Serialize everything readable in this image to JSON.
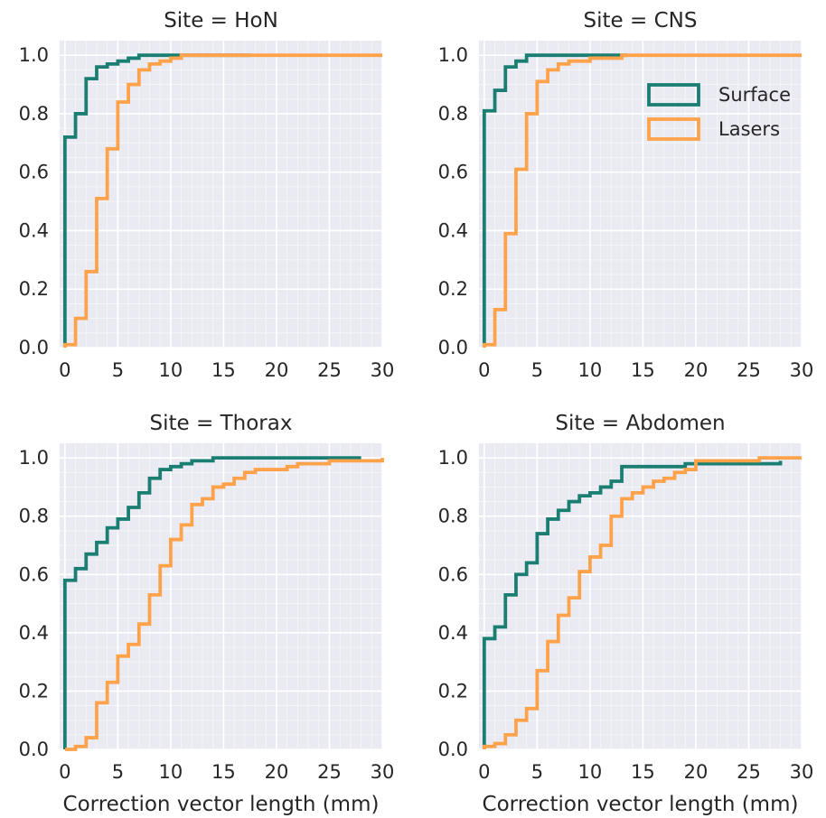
{
  "figure": {
    "colors": {
      "panel_bg": "#eaeaf2",
      "grid_major": "#ffffff",
      "surface": "#1a7f72",
      "lasers": "#ffa24a",
      "text": "#262626"
    },
    "legend": {
      "placement": "upper right of panel 2",
      "entries": [
        "Surface",
        "Lasers"
      ]
    }
  },
  "chart_data": [
    {
      "type": "line",
      "step": "post",
      "title": "Site = HoN",
      "xlabel": "",
      "xlim": [
        -0.5,
        30
      ],
      "ylim": [
        0.0,
        1.05
      ],
      "xticks": [
        "0",
        "5",
        "10",
        "15",
        "20",
        "25",
        "30"
      ],
      "yticks": [
        "0.0",
        "0.2",
        "0.4",
        "0.6",
        "0.8",
        "1.0"
      ],
      "grid": true,
      "series": [
        {
          "name": "Surface",
          "x": [
            0,
            1,
            2,
            3,
            4,
            5,
            6,
            7,
            8,
            9,
            17.5
          ],
          "y": [
            0.72,
            0.8,
            0.92,
            0.96,
            0.97,
            0.98,
            0.99,
            1.0,
            1.0,
            1.0,
            1.0
          ]
        },
        {
          "name": "Lasers",
          "x": [
            0,
            1,
            2,
            3,
            4,
            5,
            6,
            7,
            8,
            9,
            10,
            11,
            12,
            30
          ],
          "y": [
            0.01,
            0.1,
            0.26,
            0.51,
            0.68,
            0.84,
            0.9,
            0.95,
            0.97,
            0.98,
            0.99,
            1.0,
            1.0,
            1.0
          ]
        }
      ]
    },
    {
      "type": "line",
      "step": "post",
      "title": "Site = CNS",
      "xlabel": "",
      "xlim": [
        -0.5,
        30
      ],
      "ylim": [
        0.0,
        1.05
      ],
      "xticks": [
        "0",
        "5",
        "10",
        "15",
        "20",
        "25",
        "30"
      ],
      "yticks": [
        "0.0",
        "0.2",
        "0.4",
        "0.6",
        "0.8",
        "1.0"
      ],
      "grid": true,
      "series": [
        {
          "name": "Surface",
          "x": [
            0,
            1,
            2,
            3,
            4,
            13.5
          ],
          "y": [
            0.81,
            0.88,
            0.96,
            0.98,
            1.0,
            1.0
          ]
        },
        {
          "name": "Lasers",
          "x": [
            0,
            1,
            2,
            3,
            4,
            5,
            6,
            7,
            8,
            9,
            10,
            11,
            12,
            13,
            30
          ],
          "y": [
            0.01,
            0.13,
            0.39,
            0.61,
            0.8,
            0.91,
            0.95,
            0.97,
            0.98,
            0.98,
            0.99,
            0.99,
            0.99,
            1.0,
            1.0
          ]
        }
      ]
    },
    {
      "type": "line",
      "step": "post",
      "title": "Site = Thorax",
      "xlabel": "Correction vector length (mm)",
      "xlim": [
        -0.5,
        30
      ],
      "ylim": [
        0.0,
        1.05
      ],
      "xticks": [
        "0",
        "5",
        "10",
        "15",
        "20",
        "25",
        "30"
      ],
      "yticks": [
        "0.0",
        "0.2",
        "0.4",
        "0.6",
        "0.8",
        "1.0"
      ],
      "grid": true,
      "series": [
        {
          "name": "Surface",
          "x": [
            0,
            1,
            2,
            3,
            4,
            5,
            6,
            7,
            8,
            9,
            10,
            11,
            12,
            13,
            14,
            28
          ],
          "y": [
            0.58,
            0.62,
            0.67,
            0.71,
            0.76,
            0.79,
            0.83,
            0.88,
            0.93,
            0.96,
            0.97,
            0.98,
            0.99,
            0.99,
            1.0,
            1.0
          ]
        },
        {
          "name": "Lasers",
          "x": [
            0,
            1,
            2,
            3,
            4,
            5,
            6,
            7,
            8,
            9,
            10,
            11,
            12,
            13,
            14,
            15,
            16,
            17,
            18,
            19,
            20,
            21,
            22,
            23,
            24,
            25,
            26,
            27,
            28,
            30
          ],
          "y": [
            0.0,
            0.01,
            0.04,
            0.16,
            0.23,
            0.32,
            0.36,
            0.43,
            0.53,
            0.63,
            0.72,
            0.77,
            0.84,
            0.86,
            0.9,
            0.91,
            0.93,
            0.95,
            0.96,
            0.96,
            0.96,
            0.97,
            0.98,
            0.98,
            0.98,
            0.99,
            0.99,
            0.99,
            0.99,
            1.0
          ]
        }
      ]
    },
    {
      "type": "line",
      "step": "post",
      "title": "Site = Abdomen",
      "xlabel": "Correction vector length (mm)",
      "xlim": [
        -0.5,
        30
      ],
      "ylim": [
        0.0,
        1.05
      ],
      "xticks": [
        "0",
        "5",
        "10",
        "15",
        "20",
        "25",
        "30"
      ],
      "yticks": [
        "0.0",
        "0.2",
        "0.4",
        "0.6",
        "0.8",
        "1.0"
      ],
      "grid": true,
      "series": [
        {
          "name": "Surface",
          "x": [
            0,
            1,
            2,
            3,
            4,
            5,
            6,
            7,
            8,
            9,
            10,
            11,
            12,
            13,
            14,
            15,
            16,
            17,
            18,
            19,
            20,
            21,
            22,
            23,
            24,
            25,
            26,
            27,
            28
          ],
          "y": [
            0.38,
            0.42,
            0.53,
            0.6,
            0.64,
            0.74,
            0.79,
            0.82,
            0.85,
            0.87,
            0.88,
            0.9,
            0.92,
            0.97,
            0.97,
            0.97,
            0.97,
            0.97,
            0.97,
            0.98,
            0.98,
            0.98,
            0.98,
            0.98,
            0.98,
            0.98,
            0.98,
            0.98,
            0.99
          ]
        },
        {
          "name": "Lasers",
          "x": [
            0,
            1,
            2,
            3,
            4,
            5,
            6,
            7,
            8,
            9,
            10,
            11,
            12,
            13,
            14,
            15,
            16,
            17,
            18,
            19,
            20,
            26,
            30
          ],
          "y": [
            0.01,
            0.02,
            0.05,
            0.1,
            0.14,
            0.27,
            0.37,
            0.46,
            0.52,
            0.61,
            0.66,
            0.7,
            0.8,
            0.86,
            0.88,
            0.9,
            0.92,
            0.93,
            0.95,
            0.96,
            0.99,
            1.0,
            1.0
          ]
        }
      ]
    }
  ]
}
